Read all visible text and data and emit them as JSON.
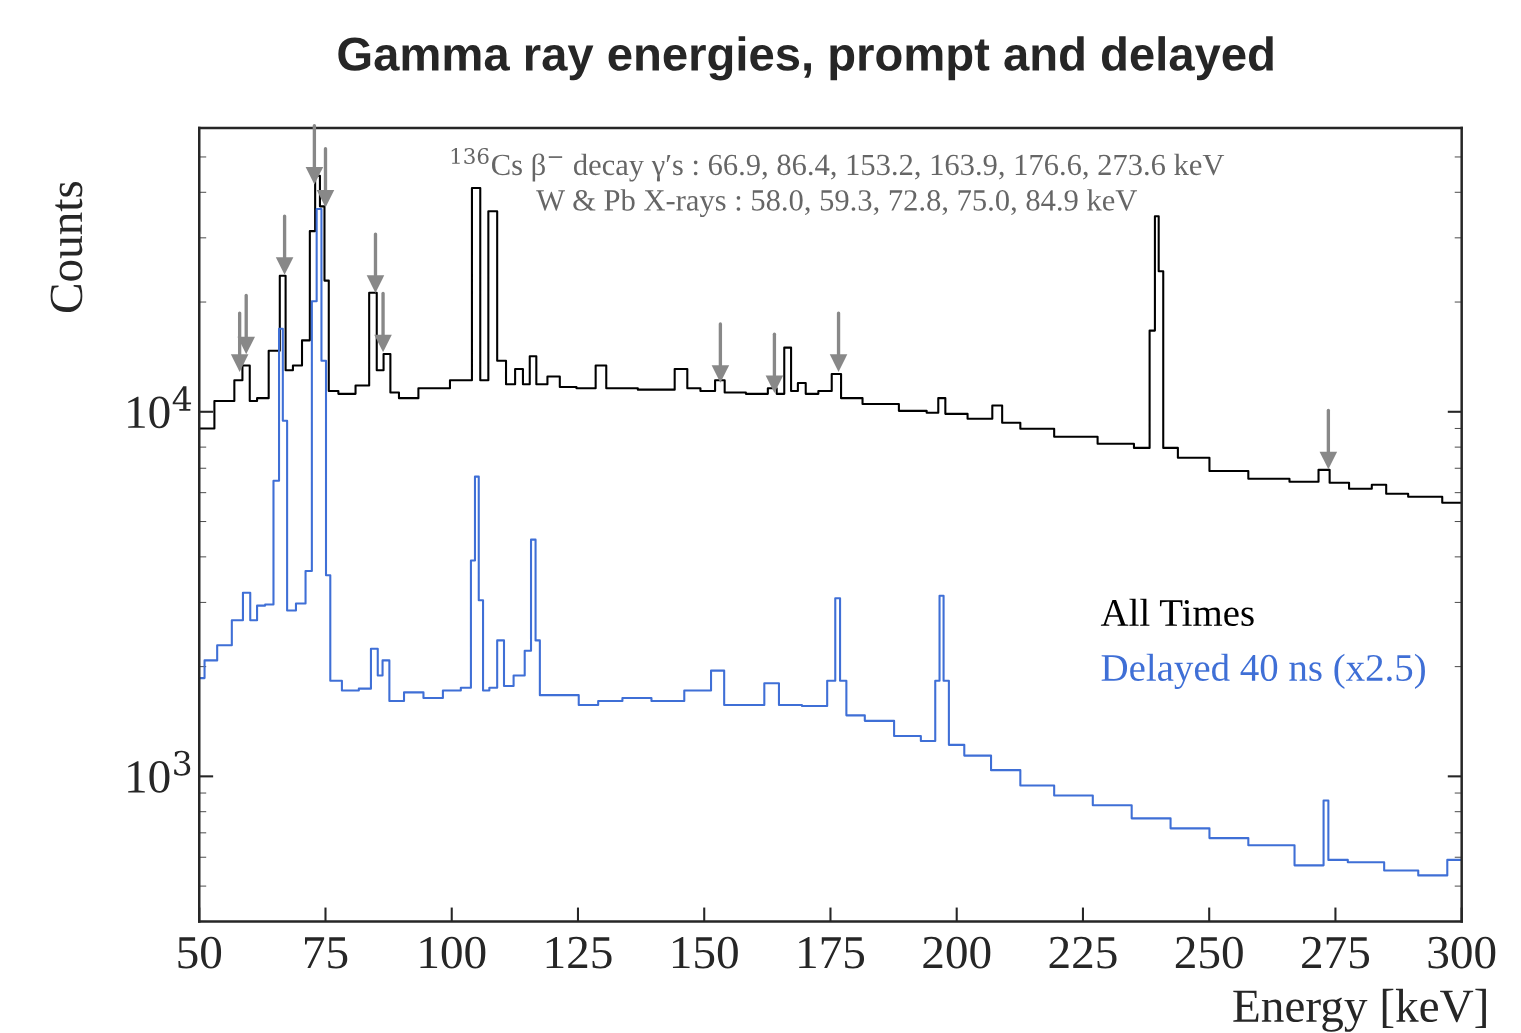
{
  "chart_data": {
    "type": "step",
    "title": "Gamma ray energies, prompt and delayed",
    "xlabel": "Energy [keV]",
    "ylabel": "Counts",
    "log": "y",
    "legend": "right",
    "grid": false,
    "xlim": [
      50,
      300
    ],
    "xticks": [
      50,
      75,
      100,
      125,
      150,
      175,
      200,
      225,
      250,
      275,
      300
    ],
    "ylim": [
      400,
      60000
    ],
    "yticks": [
      {
        "value": 1000,
        "label": "10$^{3}$"
      },
      {
        "value": 10000,
        "label": "10$^{4}$"
      }
    ],
    "annotations": [
      "$^{136}$Cs β$^{−}$ decay γ′s : 66.9, 86.4, 153.2, 163.9, 176.6, 273.6 keV",
      "W & Pb X-rays : 58.0, 59.3, 72.8, 75.0, 84.9 keV"
    ],
    "series": [
      {
        "name": "All Times",
        "color": "#000000",
        "x": [
          50,
          56,
          57.9,
          59.2,
          60.8,
          62.1,
          65.4,
          66.5,
          67.7,
          69.4,
          71.3,
          72.5,
          73.4,
          74.4,
          75.2,
          76.1,
          79.0,
          82.9,
          84.4,
          85.9,
          87.1,
          88.6,
          90.5,
          96.3,
          103.0,
          105.0,
          106.3,
          108.2,
          109.8,
          111.7,
          113.4,
          114.8,
          116.1,
          117.4,
          120.5,
          122.3,
          127.1,
          129.9,
          131.3,
          142.4,
          145.9,
          147.4,
          151.1,
          153.2,
          154.9,
          161.6,
          163.6,
          165.1,
          166.6,
          167.8,
          169.3,
          170.9,
          174.3,
          176.2,
          178.0,
          184.7,
          192.4,
          195.7,
          197.0,
          198.5,
          205.8,
          208.3,
          209.7,
          215.5,
          223.1,
          232.7,
          237.5,
          238.9,
          239.6,
          240.4,
          241.4,
          246.2,
          253.9,
          261.6,
          270.2,
          273.1,
          274.6,
          280.8,
          283.6,
          286.5,
          292.3,
          300
        ],
        "values": [
          9000,
          10700,
          12200,
          13400,
          10700,
          10900,
          14700,
          23600,
          13000,
          13400,
          15700,
          31300,
          44400,
          36600,
          22900,
          11400,
          11200,
          11800,
          21200,
          13000,
          14400,
          11300,
          10900,
          11600,
          12200,
          41100,
          12200,
          35500,
          13800,
          11900,
          13100,
          11900,
          14200,
          11900,
          12500,
          11700,
          11600,
          13400,
          11600,
          11500,
          13100,
          11600,
          11400,
          12200,
          11300,
          11200,
          11600,
          11200,
          15000,
          11400,
          12000,
          11200,
          11400,
          12700,
          10900,
          10500,
          10060,
          9940,
          10900,
          9870,
          9570,
          10400,
          9330,
          8980,
          8540,
          8170,
          7960,
          16700,
          34400,
          24300,
          7960,
          7480,
          6880,
          6550,
          6430,
          6930,
          6390,
          6150,
          6310,
          5960,
          5850,
          5630
        ]
      },
      {
        "name": "Delayed 40 ns (x2.5)",
        "color": "#3f6fd6",
        "x": [
          50,
          52.1,
          55.0,
          57.9,
          59.4,
          60.8,
          62.1,
          64.0,
          65.4,
          66.2,
          66.9,
          67.9,
          70.4,
          71.7,
          72.9,
          73.6,
          74.8,
          75.4,
          76.5,
          80.0,
          83.2,
          84.8,
          85.9,
          86.7,
          88.6,
          92.5,
          96.3,
          100.2,
          103.4,
          104.2,
          105.0,
          105.7,
          106.7,
          108.2,
          109.8,
          110.9,
          113.6,
          115.3,
          116.1,
          117.1,
          117.8,
          123.2,
          127.1,
          130.9,
          136.7,
          142.4,
          149.7,
          153.0,
          154.9,
          159.7,
          164.1,
          165.5,
          173.2,
          175.5,
          176.4,
          177.4,
          178.9,
          184.7,
          190.5,
          195.3,
          196.2,
          197.0,
          197.8,
          199.1,
          203.9,
          209.7,
          215.5,
          223.1,
          230.8,
          238.5,
          246.2,
          253.9,
          261.6,
          272.2,
          273.1,
          274.1,
          280.8,
          288.5,
          294.3,
          300
        ],
        "values": [
          1860,
          2080,
          2290,
          2680,
          3190,
          2680,
          2940,
          2960,
          6470,
          16900,
          9450,
          2850,
          2980,
          3660,
          20100,
          36000,
          13800,
          3560,
          1830,
          1720,
          1740,
          2240,
          1890,
          2080,
          1610,
          1700,
          1640,
          1720,
          1750,
          3910,
          6640,
          3040,
          1720,
          1750,
          2360,
          1770,
          1890,
          2210,
          4460,
          2360,
          1670,
          1670,
          1570,
          1610,
          1640,
          1610,
          1720,
          1950,
          1570,
          1570,
          1800,
          1570,
          1560,
          1830,
          3080,
          1830,
          1470,
          1420,
          1290,
          1250,
          1830,
          3130,
          1830,
          1220,
          1140,
          1040,
          944,
          886,
          833,
          767,
          720,
          677,
          647,
          570,
          859,
          590,
          581,
          552,
          535,
          590
        ]
      },
      {
        "type": "scatter",
        "marker": "triangle",
        "color": "#888888",
        "x": [
          58.0,
          59.3,
          66.9,
          72.8,
          75.0,
          84.9,
          86.4,
          153.2,
          163.9,
          176.6,
          273.6
        ],
        "values": [
          13600,
          15200,
          25100,
          44400,
          38400,
          22400,
          15400,
          12700,
          11900,
          13600,
          7350
        ]
      }
    ]
  }
}
